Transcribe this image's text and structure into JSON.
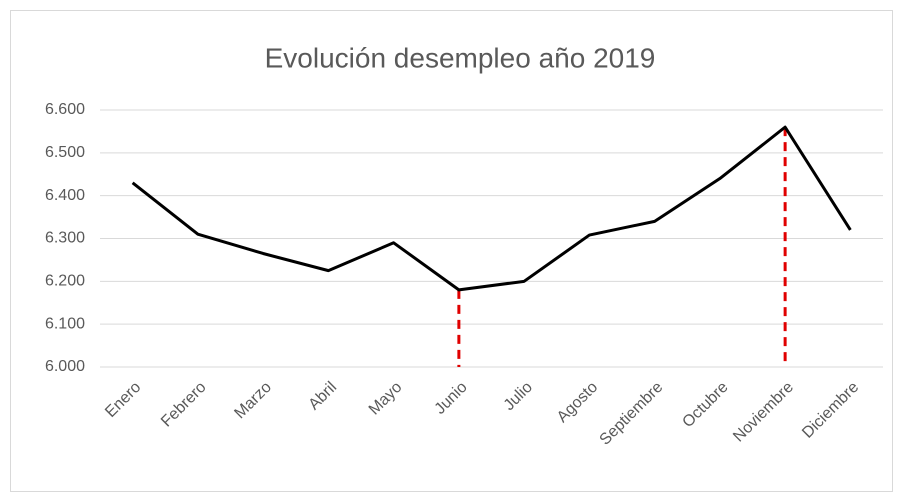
{
  "chart_data": {
    "type": "line",
    "title": "Evolución desempleo año 2019",
    "categories": [
      "Enero",
      "Febrero",
      "Marzo",
      "Abril",
      "Mayo",
      "Junio",
      "Julio",
      "Agosto",
      "Septiembre",
      "Octubre",
      "Noviembre",
      "Diciembre"
    ],
    "values": [
      6430,
      6310,
      6265,
      6225,
      6290,
      6180,
      6200,
      6308,
      6340,
      6440,
      6560,
      6320
    ],
    "color": "#000000",
    "ylim": [
      6000,
      6600
    ],
    "yticks": [
      {
        "value": 6000,
        "label": "6.000"
      },
      {
        "value": 6100,
        "label": "6.100"
      },
      {
        "value": 6200,
        "label": "6.200"
      },
      {
        "value": 6300,
        "label": "6.300"
      },
      {
        "value": 6400,
        "label": "6.400"
      },
      {
        "value": 6500,
        "label": "6.500"
      },
      {
        "value": 6600,
        "label": "6.600"
      }
    ],
    "grid": true,
    "highlight_categories": [
      "Junio",
      "Noviembre"
    ],
    "highlight_color": "#e00000"
  }
}
